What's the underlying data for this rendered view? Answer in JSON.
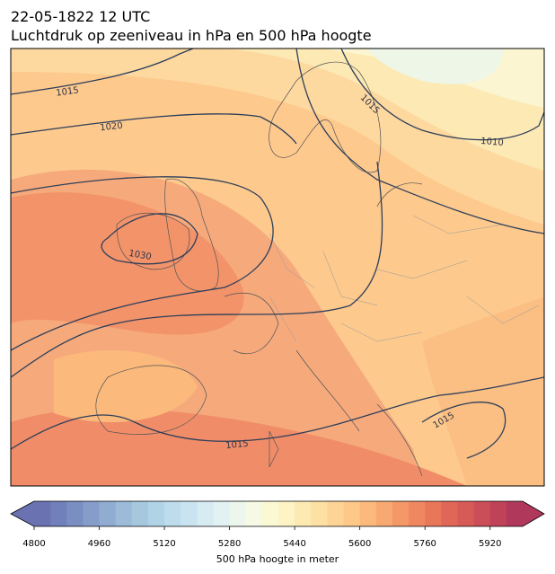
{
  "header": {
    "title": "22-05-1822 12 UTC",
    "subtitle": "Luchtdruk op zeeniveau in hPa en 500 hPa hoogte"
  },
  "map": {
    "isobar_labels": [
      "1015",
      "1020",
      "1030",
      "1015",
      "1010",
      "1015",
      "1015"
    ]
  },
  "colorbar": {
    "label": "500 hPa hoogte in meter",
    "lim": [
      4800,
      6000
    ],
    "ticks": [
      4800,
      4960,
      5120,
      5280,
      5440,
      5600,
      5760,
      5920
    ],
    "colors": [
      "#6a72b2",
      "#717fba",
      "#7b8ec2",
      "#869dca",
      "#90acd1",
      "#9bbbd8",
      "#a6c8df",
      "#b1d3e6",
      "#bddcec",
      "#c9e4f0",
      "#d6ebf2",
      "#e2f1f1",
      "#edf6ec",
      "#f6f9e3",
      "#fbf8d4",
      "#fdf3c4",
      "#fdeab2",
      "#fde0a3",
      "#fdd495",
      "#fdc888",
      "#fbb97c",
      "#f8a972",
      "#f49868",
      "#ef8760",
      "#e8775a",
      "#e06757",
      "#d65a56",
      "#cb4d57",
      "#bf4259",
      "#b0385b"
    ]
  }
}
